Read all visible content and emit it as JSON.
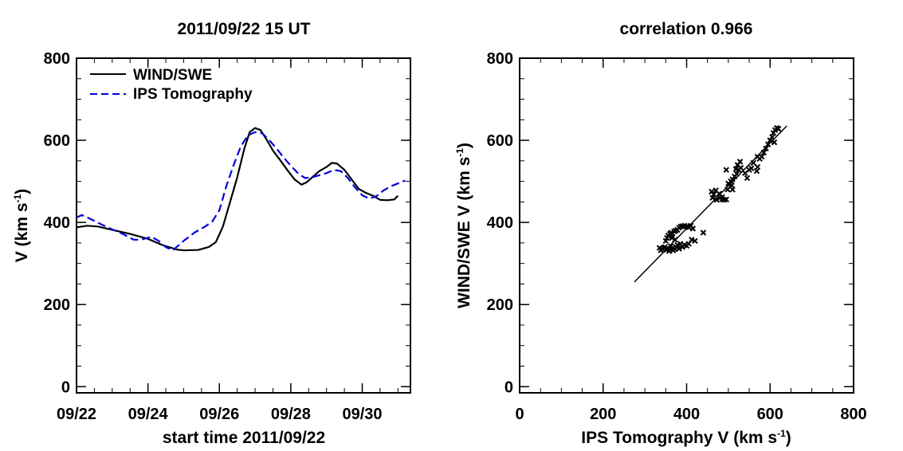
{
  "chart_data": [
    {
      "type": "line",
      "title": "2011/09/22 15 UT",
      "xlabel": "start time 2011/09/22",
      "ylabel_main": "V (km s",
      "ylabel_sup": "-1",
      "ylabel_tail": ")",
      "xlim": [
        0,
        9.35
      ],
      "ylim": [
        -15,
        800
      ],
      "xticks": [
        {
          "x": 0,
          "label": "09/22"
        },
        {
          "x": 2,
          "label": "09/24"
        },
        {
          "x": 4,
          "label": "09/26"
        },
        {
          "x": 6,
          "label": "09/28"
        },
        {
          "x": 8,
          "label": "09/30"
        }
      ],
      "yticks": [
        {
          "y": 0,
          "label": "0"
        },
        {
          "y": 200,
          "label": "200"
        },
        {
          "y": 400,
          "label": "400"
        },
        {
          "y": 600,
          "label": "600"
        },
        {
          "y": 800,
          "label": "800"
        }
      ],
      "legend_position": "top-left",
      "series": [
        {
          "name": "WIND/SWE",
          "style": "solid",
          "color": "#000000",
          "points": [
            [
              0,
              388
            ],
            [
              0.3,
              392
            ],
            [
              0.6,
              390
            ],
            [
              1.0,
              382
            ],
            [
              1.5,
              372
            ],
            [
              2.0,
              360
            ],
            [
              2.4,
              345
            ],
            [
              2.8,
              334
            ],
            [
              3.0,
              332
            ],
            [
              3.4,
              333
            ],
            [
              3.7,
              340
            ],
            [
              3.9,
              352
            ],
            [
              4.1,
              390
            ],
            [
              4.3,
              450
            ],
            [
              4.5,
              510
            ],
            [
              4.7,
              580
            ],
            [
              4.85,
              620
            ],
            [
              5.0,
              630
            ],
            [
              5.15,
              625
            ],
            [
              5.3,
              605
            ],
            [
              5.5,
              575
            ],
            [
              5.7,
              552
            ],
            [
              5.9,
              528
            ],
            [
              6.1,
              505
            ],
            [
              6.3,
              492
            ],
            [
              6.45,
              498
            ],
            [
              6.6,
              510
            ],
            [
              6.8,
              525
            ],
            [
              7.0,
              535
            ],
            [
              7.15,
              545
            ],
            [
              7.3,
              543
            ],
            [
              7.5,
              528
            ],
            [
              7.7,
              505
            ],
            [
              7.9,
              482
            ],
            [
              8.1,
              472
            ],
            [
              8.3,
              465
            ],
            [
              8.5,
              455
            ],
            [
              8.7,
              454
            ],
            [
              8.9,
              456
            ],
            [
              9.0,
              465
            ]
          ]
        },
        {
          "name": "IPS Tomography",
          "style": "dashed",
          "color": "#0000dd",
          "points": [
            [
              0,
              412
            ],
            [
              0.15,
              418
            ],
            [
              0.4,
              408
            ],
            [
              0.7,
              395
            ],
            [
              1.0,
              383
            ],
            [
              1.3,
              372
            ],
            [
              1.6,
              358
            ],
            [
              1.8,
              358
            ],
            [
              2.1,
              365
            ],
            [
              2.3,
              355
            ],
            [
              2.5,
              340
            ],
            [
              2.7,
              332
            ],
            [
              2.8,
              340
            ],
            [
              3.0,
              355
            ],
            [
              3.3,
              375
            ],
            [
              3.6,
              390
            ],
            [
              3.8,
              402
            ],
            [
              4.0,
              430
            ],
            [
              4.2,
              490
            ],
            [
              4.4,
              540
            ],
            [
              4.6,
              585
            ],
            [
              4.8,
              612
            ],
            [
              5.0,
              620
            ],
            [
              5.2,
              617
            ],
            [
              5.4,
              600
            ],
            [
              5.6,
              580
            ],
            [
              5.8,
              558
            ],
            [
              6.0,
              538
            ],
            [
              6.2,
              520
            ],
            [
              6.4,
              508
            ],
            [
              6.6,
              510
            ],
            [
              6.8,
              515
            ],
            [
              7.0,
              520
            ],
            [
              7.2,
              528
            ],
            [
              7.4,
              525
            ],
            [
              7.6,
              508
            ],
            [
              7.8,
              485
            ],
            [
              8.0,
              466
            ],
            [
              8.2,
              458
            ],
            [
              8.4,
              464
            ],
            [
              8.6,
              478
            ],
            [
              8.8,
              488
            ],
            [
              9.0,
              495
            ],
            [
              9.2,
              502
            ]
          ]
        }
      ]
    },
    {
      "type": "scatter",
      "title": "correlation 0.966",
      "xlabel_main": "IPS Tomography V (km s",
      "xlabel_sup": "-1",
      "xlabel_tail": ")",
      "ylabel_main": "WIND/SWE V (km s",
      "ylabel_sup": "-1",
      "ylabel_tail": ")",
      "xlim": [
        0,
        800
      ],
      "ylim": [
        -15,
        800
      ],
      "xticks": [
        {
          "x": 0,
          "label": "0"
        },
        {
          "x": 200,
          "label": "200"
        },
        {
          "x": 400,
          "label": "400"
        },
        {
          "x": 600,
          "label": "600"
        },
        {
          "x": 800,
          "label": "800"
        }
      ],
      "yticks": [
        {
          "y": 0,
          "label": "0"
        },
        {
          "y": 200,
          "label": "200"
        },
        {
          "y": 400,
          "label": "400"
        },
        {
          "y": 600,
          "label": "600"
        },
        {
          "y": 800,
          "label": "800"
        }
      ],
      "fit_line": [
        [
          275,
          255
        ],
        [
          640,
          635
        ]
      ],
      "points": [
        [
          335,
          338
        ],
        [
          338,
          332
        ],
        [
          342,
          335
        ],
        [
          345,
          338
        ],
        [
          348,
          340
        ],
        [
          352,
          333
        ],
        [
          355,
          336
        ],
        [
          358,
          330
        ],
        [
          360,
          335
        ],
        [
          362,
          342
        ],
        [
          365,
          337
        ],
        [
          368,
          332
        ],
        [
          372,
          335
        ],
        [
          375,
          340
        ],
        [
          378,
          345
        ],
        [
          382,
          336
        ],
        [
          385,
          348
        ],
        [
          390,
          340
        ],
        [
          395,
          345
        ],
        [
          400,
          343
        ],
        [
          405,
          348
        ],
        [
          350,
          355
        ],
        [
          353,
          362
        ],
        [
          356,
          368
        ],
        [
          360,
          372
        ],
        [
          363,
          375
        ],
        [
          366,
          365
        ],
        [
          370,
          378
        ],
        [
          374,
          380
        ],
        [
          378,
          382
        ],
        [
          382,
          387
        ],
        [
          386,
          390
        ],
        [
          390,
          391
        ],
        [
          395,
          392
        ],
        [
          400,
          390
        ],
        [
          405,
          388
        ],
        [
          410,
          392
        ],
        [
          415,
          385
        ],
        [
          365,
          362
        ],
        [
          372,
          358
        ],
        [
          412,
          358
        ],
        [
          420,
          355
        ],
        [
          440,
          375
        ],
        [
          460,
          475
        ],
        [
          465,
          468
        ],
        [
          470,
          478
        ],
        [
          478,
          470
        ],
        [
          462,
          460
        ],
        [
          472,
          455
        ],
        [
          480,
          460
        ],
        [
          485,
          456
        ],
        [
          490,
          455
        ],
        [
          495,
          456
        ],
        [
          485,
          462
        ],
        [
          498,
          480
        ],
        [
          502,
          492
        ],
        [
          506,
          500
        ],
        [
          510,
          505
        ],
        [
          515,
          512
        ],
        [
          520,
          518
        ],
        [
          525,
          528
        ],
        [
          530,
          533
        ],
        [
          508,
          490
        ],
        [
          518,
          530
        ],
        [
          522,
          540
        ],
        [
          528,
          548
        ],
        [
          540,
          520
        ],
        [
          545,
          508
        ],
        [
          550,
          528
        ],
        [
          555,
          532
        ],
        [
          560,
          545
        ],
        [
          570,
          535
        ],
        [
          575,
          555
        ],
        [
          580,
          560
        ],
        [
          585,
          570
        ],
        [
          590,
          580
        ],
        [
          595,
          590
        ],
        [
          600,
          600
        ],
        [
          605,
          608
        ],
        [
          608,
          618
        ],
        [
          612,
          625
        ],
        [
          616,
          630
        ],
        [
          620,
          628
        ],
        [
          610,
          595
        ],
        [
          570,
          560
        ],
        [
          500,
          495
        ],
        [
          510,
          480
        ],
        [
          495,
          528
        ],
        [
          568,
          525
        ]
      ]
    }
  ]
}
